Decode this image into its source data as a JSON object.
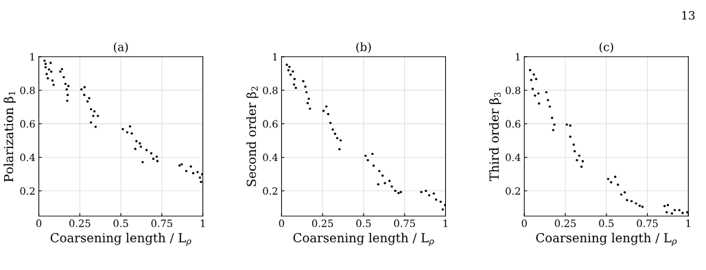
{
  "chart_data": [
    {
      "type": "scatter",
      "title": "(a)",
      "xlabel": "Coarsening length / L$_{ρ}$",
      "ylabel": "Polarization β$_{1}$",
      "xlim": [
        0,
        1
      ],
      "ylim": [
        0.05,
        1
      ],
      "xticks": [
        0,
        0.25,
        0.5,
        0.75,
        1
      ],
      "yticks": [
        0.2,
        0.4,
        0.6,
        0.8,
        1
      ],
      "grid": true,
      "marker": "circle",
      "series": [
        {
          "color": "#000000",
          "x": [
            0.035,
            0.041,
            0.048,
            0.055,
            0.072,
            0.076,
            0.083,
            0.09,
            0.062,
            0.041,
            0.131,
            0.141,
            0.152,
            0.162,
            0.17,
            0.176,
            0.173,
            0.18,
            0.26,
            0.279,
            0.277,
            0.297,
            0.307,
            0.318,
            0.332,
            0.339,
            0.346,
            0.36,
            0.318,
            0.512,
            0.539,
            0.556,
            0.567,
            0.595,
            0.616,
            0.622,
            0.588,
            0.633,
            0.657,
            0.685,
            0.698,
            0.719,
            0.723,
            0.858,
            0.871,
            0.899,
            0.927,
            0.941,
            0.968,
            0.982,
            0.989,
            0.996
          ],
          "values": [
            0.976,
            0.937,
            0.897,
            0.871,
            0.963,
            0.911,
            0.858,
            0.832,
            0.924,
            0.957,
            0.911,
            0.926,
            0.878,
            0.838,
            0.805,
            0.772,
            0.737,
            0.825,
            0.805,
            0.818,
            0.772,
            0.733,
            0.753,
            0.687,
            0.647,
            0.674,
            0.582,
            0.647,
            0.608,
            0.568,
            0.549,
            0.584,
            0.542,
            0.496,
            0.483,
            0.463,
            0.45,
            0.371,
            0.443,
            0.424,
            0.391,
            0.404,
            0.378,
            0.351,
            0.358,
            0.318,
            0.345,
            0.305,
            0.312,
            0.279,
            0.253,
            0.299
          ]
        }
      ]
    },
    {
      "type": "scatter",
      "title": "(b)",
      "xlabel": "Coarsening length / L$_{ρ}$",
      "ylabel": "Second order β$_{2}$",
      "xlim": [
        0,
        1
      ],
      "ylim": [
        0.05,
        1
      ],
      "xticks": [
        0,
        0.25,
        0.5,
        0.75,
        1
      ],
      "yticks": [
        0.2,
        0.4,
        0.6,
        0.8,
        1
      ],
      "grid": true,
      "marker": "circle",
      "series": [
        {
          "color": "#000000",
          "x": [
            0.032,
            0.042,
            0.055,
            0.069,
            0.079,
            0.087,
            0.048,
            0.076,
            0.132,
            0.145,
            0.152,
            0.166,
            0.173,
            0.159,
            0.256,
            0.273,
            0.284,
            0.298,
            0.312,
            0.326,
            0.339,
            0.353,
            0.36,
            0.512,
            0.526,
            0.554,
            0.561,
            0.596,
            0.616,
            0.589,
            0.63,
            0.658,
            0.672,
            0.693,
            0.713,
            0.727,
            0.852,
            0.88,
            0.9,
            0.928,
            0.942,
            0.97,
            0.983,
            0.997
          ],
          "values": [
            0.952,
            0.919,
            0.893,
            0.912,
            0.867,
            0.814,
            0.939,
            0.834,
            0.854,
            0.821,
            0.788,
            0.749,
            0.69,
            0.723,
            0.677,
            0.703,
            0.658,
            0.605,
            0.566,
            0.54,
            0.514,
            0.448,
            0.501,
            0.409,
            0.383,
            0.42,
            0.35,
            0.318,
            0.291,
            0.239,
            0.246,
            0.259,
            0.226,
            0.2,
            0.187,
            0.193,
            0.193,
            0.2,
            0.174,
            0.184,
            0.148,
            0.135,
            0.089,
            0.115
          ]
        }
      ]
    },
    {
      "type": "scatter",
      "title": "(c)",
      "xlabel": "Coarsening length / L$_{ρ}$",
      "ylabel": "Third order β$_{3}$",
      "xlim": [
        0,
        1
      ],
      "ylim": [
        0.05,
        1
      ],
      "xticks": [
        0,
        0.25,
        0.5,
        0.75,
        1
      ],
      "yticks": [
        0.2,
        0.4,
        0.6,
        0.8,
        1
      ],
      "grid": true,
      "marker": "circle",
      "annotations": [
        "13"
      ],
      "series": [
        {
          "color": "#000000",
          "x": [
            0.035,
            0.042,
            0.051,
            0.065,
            0.072,
            0.086,
            0.09,
            0.058,
            0.134,
            0.144,
            0.155,
            0.169,
            0.176,
            0.183,
            0.259,
            0.28,
            0.28,
            0.301,
            0.307,
            0.321,
            0.335,
            0.349,
            0.356,
            0.511,
            0.529,
            0.554,
            0.571,
            0.591,
            0.612,
            0.626,
            0.654,
            0.681,
            0.703,
            0.72,
            0.855,
            0.875,
            0.868,
            0.9,
            0.917,
            0.945,
            0.965,
            0.993
          ],
          "values": [
            0.92,
            0.861,
            0.808,
            0.768,
            0.867,
            0.781,
            0.721,
            0.894,
            0.788,
            0.741,
            0.702,
            0.635,
            0.562,
            0.595,
            0.595,
            0.589,
            0.523,
            0.476,
            0.436,
            0.383,
            0.41,
            0.344,
            0.377,
            0.271,
            0.251,
            0.284,
            0.237,
            0.178,
            0.191,
            0.145,
            0.138,
            0.125,
            0.111,
            0.105,
            0.109,
            0.115,
            0.072,
            0.065,
            0.085,
            0.085,
            0.068,
            0.072
          ]
        }
      ]
    }
  ]
}
